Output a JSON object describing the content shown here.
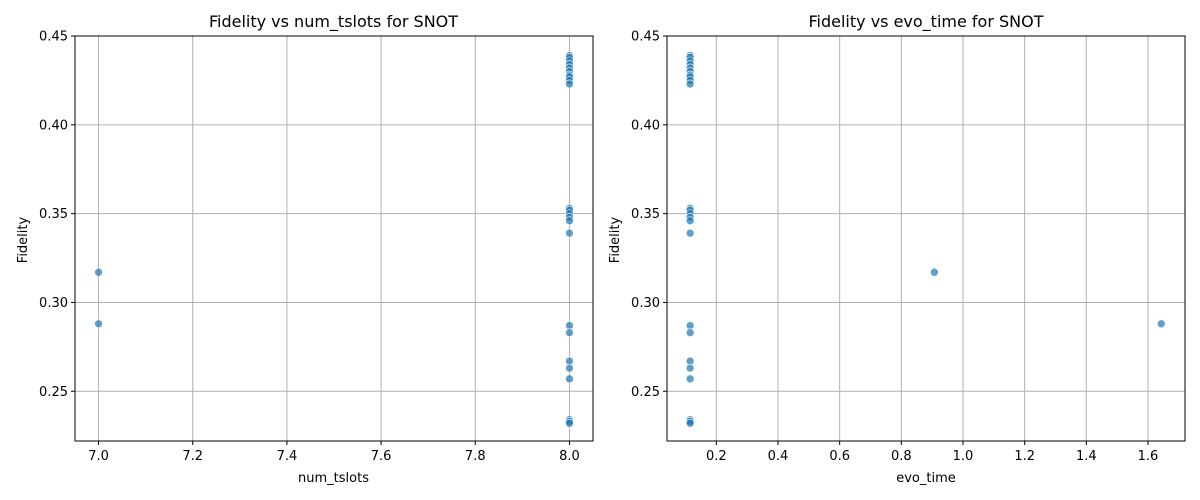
{
  "chart_data": [
    {
      "type": "scatter",
      "title": "Fidelity vs num_tslots for SNOT",
      "xlabel": "num_tslots",
      "ylabel": "Fidelity",
      "xlim": [
        6.95,
        8.05
      ],
      "ylim": [
        0.222,
        0.45
      ],
      "xticks": [
        7.0,
        7.2,
        7.4,
        7.6,
        7.8,
        8.0
      ],
      "xtick_labels": [
        "7.0",
        "7.2",
        "7.4",
        "7.6",
        "7.8",
        "8.0"
      ],
      "yticks": [
        0.25,
        0.3,
        0.35,
        0.4,
        0.45
      ],
      "ytick_labels": [
        "0.25",
        "0.30",
        "0.35",
        "0.40",
        "0.45"
      ],
      "grid": true,
      "color": "#1f77b4",
      "points": [
        {
          "x": 7.0,
          "y": 0.317
        },
        {
          "x": 7.0,
          "y": 0.288
        },
        {
          "x": 8.0,
          "y": 0.439
        },
        {
          "x": 8.0,
          "y": 0.438
        },
        {
          "x": 8.0,
          "y": 0.436
        },
        {
          "x": 8.0,
          "y": 0.434
        },
        {
          "x": 8.0,
          "y": 0.432
        },
        {
          "x": 8.0,
          "y": 0.43
        },
        {
          "x": 8.0,
          "y": 0.428
        },
        {
          "x": 8.0,
          "y": 0.427
        },
        {
          "x": 8.0,
          "y": 0.425
        },
        {
          "x": 8.0,
          "y": 0.423
        },
        {
          "x": 8.0,
          "y": 0.353
        },
        {
          "x": 8.0,
          "y": 0.352
        },
        {
          "x": 8.0,
          "y": 0.35
        },
        {
          "x": 8.0,
          "y": 0.348
        },
        {
          "x": 8.0,
          "y": 0.346
        },
        {
          "x": 8.0,
          "y": 0.339
        },
        {
          "x": 8.0,
          "y": 0.287
        },
        {
          "x": 8.0,
          "y": 0.283
        },
        {
          "x": 8.0,
          "y": 0.267
        },
        {
          "x": 8.0,
          "y": 0.263
        },
        {
          "x": 8.0,
          "y": 0.257
        },
        {
          "x": 8.0,
          "y": 0.234
        },
        {
          "x": 8.0,
          "y": 0.233
        },
        {
          "x": 8.0,
          "y": 0.232
        }
      ]
    },
    {
      "type": "scatter",
      "title": "Fidelity vs evo_time for SNOT",
      "xlabel": "evo_time",
      "ylabel": "Fidelity",
      "xlim": [
        0.04,
        1.72
      ],
      "ylim": [
        0.222,
        0.45
      ],
      "xticks": [
        0.2,
        0.4,
        0.6,
        0.8,
        1.0,
        1.2,
        1.4,
        1.6
      ],
      "xtick_labels": [
        "0.2",
        "0.4",
        "0.6",
        "0.8",
        "1.0",
        "1.2",
        "1.4",
        "1.6"
      ],
      "yticks": [
        0.25,
        0.3,
        0.35,
        0.4,
        0.45
      ],
      "ytick_labels": [
        "0.25",
        "0.30",
        "0.35",
        "0.40",
        "0.45"
      ],
      "grid": true,
      "color": "#1f77b4",
      "points": [
        {
          "x": 0.907,
          "y": 0.317
        },
        {
          "x": 1.643,
          "y": 0.288
        },
        {
          "x": 0.115,
          "y": 0.439
        },
        {
          "x": 0.115,
          "y": 0.438
        },
        {
          "x": 0.115,
          "y": 0.436
        },
        {
          "x": 0.115,
          "y": 0.434
        },
        {
          "x": 0.115,
          "y": 0.432
        },
        {
          "x": 0.115,
          "y": 0.43
        },
        {
          "x": 0.115,
          "y": 0.428
        },
        {
          "x": 0.115,
          "y": 0.427
        },
        {
          "x": 0.115,
          "y": 0.425
        },
        {
          "x": 0.115,
          "y": 0.423
        },
        {
          "x": 0.115,
          "y": 0.353
        },
        {
          "x": 0.115,
          "y": 0.352
        },
        {
          "x": 0.115,
          "y": 0.35
        },
        {
          "x": 0.115,
          "y": 0.348
        },
        {
          "x": 0.115,
          "y": 0.346
        },
        {
          "x": 0.115,
          "y": 0.339
        },
        {
          "x": 0.115,
          "y": 0.287
        },
        {
          "x": 0.115,
          "y": 0.283
        },
        {
          "x": 0.115,
          "y": 0.267
        },
        {
          "x": 0.115,
          "y": 0.263
        },
        {
          "x": 0.115,
          "y": 0.257
        },
        {
          "x": 0.115,
          "y": 0.234
        },
        {
          "x": 0.115,
          "y": 0.233
        },
        {
          "x": 0.115,
          "y": 0.232
        }
      ]
    }
  ]
}
